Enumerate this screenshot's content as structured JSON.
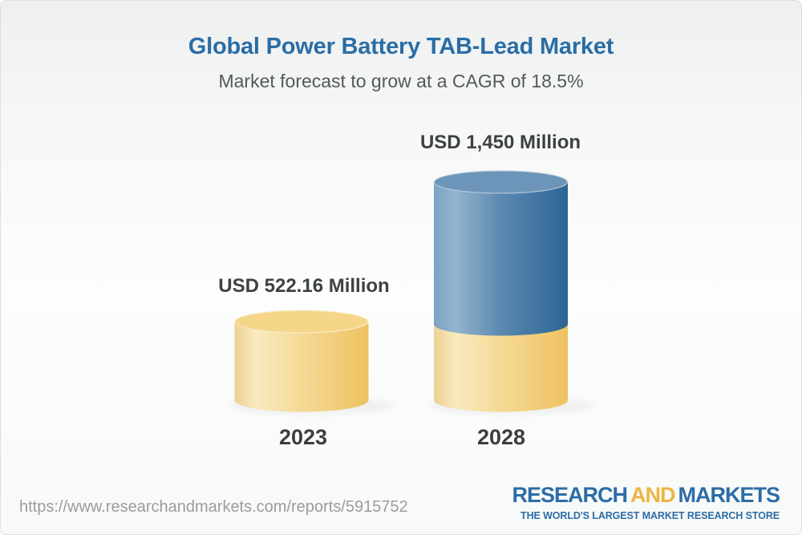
{
  "header": {
    "title": "Global Power Battery TAB-Lead Market",
    "subtitle": "Market forecast to grow at a CAGR of 18.5%"
  },
  "chart_data": {
    "type": "bar",
    "variant": "3d-cylinder-stacked",
    "categories": [
      "2023",
      "2028"
    ],
    "values": [
      522.16,
      1450
    ],
    "value_labels": [
      "USD 522.16 Million",
      "USD 1,450 Million"
    ],
    "unit": "USD Million",
    "cagr_percent": 18.5,
    "title": "Global Power Battery TAB-Lead Market",
    "subtitle": "Market forecast to grow at a CAGR of 18.5%",
    "ylim": [
      0,
      1450
    ],
    "legend": "none",
    "grid": false,
    "colors": {
      "yellow_top": "#f5d689",
      "yellow_body": [
        "#edd094",
        "#f9eabf",
        "#f5da96",
        "#eec15f"
      ],
      "blue_top": "#6d95b9",
      "blue_body": [
        "#7aa3c4",
        "#92b4cf",
        "#5b89b0",
        "#2c6496"
      ]
    }
  },
  "footer": {
    "url": "https://www.researchandmarkets.com/reports/5915752",
    "logo": {
      "research": "RESEARCH",
      "and": "AND",
      "markets": "MARKETS",
      "tagline": "THE WORLD'S LARGEST MARKET RESEARCH STORE"
    }
  },
  "colors": {
    "title_blue": "#2b6da5",
    "subtitle_gray": "#54585a",
    "label_dark": "#3e4144",
    "url_gray": "#9a9c9e",
    "logo_blue": "#2d6da7",
    "logo_gold": "#efb542",
    "card_border": "#dcdfe0"
  }
}
